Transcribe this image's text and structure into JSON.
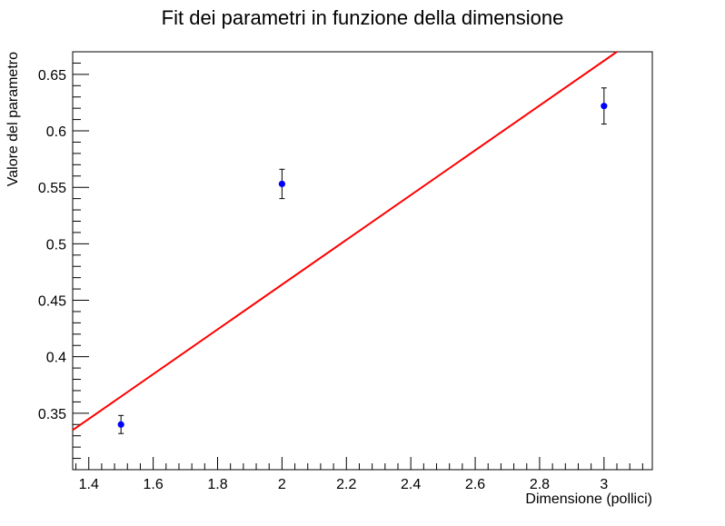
{
  "chart_data": {
    "type": "scatter",
    "title": "Fit dei parametri in funzione della dimensione",
    "xlabel": "Dimensione (pollici)",
    "ylabel": "Valore del parametro",
    "xlim": [
      1.35,
      3.15
    ],
    "ylim": [
      0.3,
      0.67
    ],
    "x_major_ticks": [
      1.4,
      1.6,
      1.8,
      2,
      2.2,
      2.4,
      2.6,
      2.8,
      3
    ],
    "x_tick_labels": [
      "1.4",
      "1.6",
      "1.8",
      "2",
      "2.2",
      "2.4",
      "2.6",
      "2.8",
      "3"
    ],
    "y_major_ticks": [
      0.35,
      0.4,
      0.45,
      0.5,
      0.55,
      0.6,
      0.65
    ],
    "y_tick_labels": [
      "0.35",
      "0.4",
      "0.45",
      "0.5",
      "0.55",
      "0.6",
      "0.65"
    ],
    "grid": false,
    "points": [
      {
        "x": 1.5,
        "y": 0.34,
        "yerr": 0.008
      },
      {
        "x": 2.0,
        "y": 0.553,
        "yerr": 0.013
      },
      {
        "x": 3.0,
        "y": 0.622,
        "yerr": 0.016
      }
    ],
    "fit_line": {
      "x": [
        1.35,
        3.04
      ],
      "y": [
        0.335,
        0.67
      ]
    },
    "colors": {
      "points": "#0000ff",
      "error_bars": "#000000",
      "fit_line": "#ff0000",
      "axes": "#000000"
    }
  }
}
